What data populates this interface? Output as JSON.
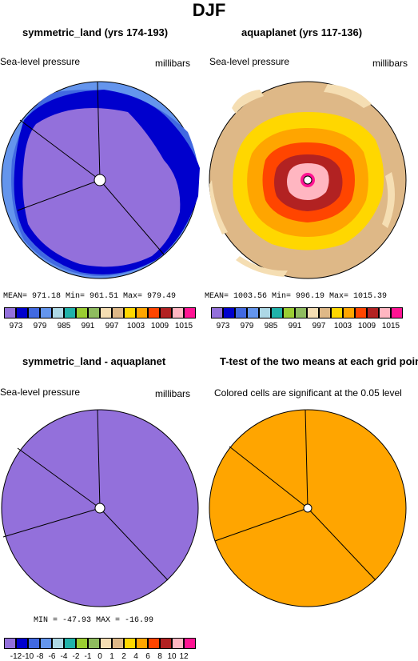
{
  "figure": {
    "title": "DJF",
    "panels": [
      {
        "title": "symmetric_land (yrs 174-193)",
        "left_label": "Sea-level pressure",
        "right_label": "millibars",
        "stats": "MEAN= 971.18   Min= 961.51   Max= 979.49"
      },
      {
        "title": "aquaplanet (yrs 117-136)",
        "left_label": "Sea-level pressure",
        "right_label": "millibars",
        "stats": "MEAN= 1003.56  Min= 996.19  Max= 1015.39"
      },
      {
        "title": "symmetric_land - aquaplanet",
        "left_label": "Sea-level pressure",
        "right_label": "millibars",
        "stats": "MIN = -47.93  MAX = -16.99"
      },
      {
        "title": "T-test of the two means at each grid point",
        "left_label": "Colored cells are significant at the 0.05 level",
        "right_label": "",
        "stats": ""
      }
    ],
    "top_colorbar": {
      "colors": [
        "#9370db",
        "#0000cd",
        "#4169e1",
        "#6495ed",
        "#add8e6",
        "#20b2aa",
        "#9acd32",
        "#8fbc5f",
        "#f5deb3",
        "#deb887",
        "#ffd700",
        "#ffa500",
        "#ff4500",
        "#b22222",
        "#ffb6c1",
        "#ff1493"
      ],
      "labels": [
        "973",
        "979",
        "985",
        "991",
        "997",
        "1003",
        "1009",
        "1015"
      ]
    },
    "diff_colorbar": {
      "colors": [
        "#9370db",
        "#0000cd",
        "#4169e1",
        "#6495ed",
        "#add8e6",
        "#20b2aa",
        "#9acd32",
        "#8fbc5f",
        "#f5deb3",
        "#deb887",
        "#ffd700",
        "#ffa500",
        "#ff4500",
        "#b22222",
        "#ffb6c1",
        "#ff1493"
      ],
      "labels": [
        "-12",
        "-10",
        "-8",
        "-6",
        "-4",
        "-2",
        "-1",
        "0",
        "1",
        "2",
        "4",
        "6",
        "8",
        "10",
        "12"
      ]
    }
  },
  "chart_data": [
    {
      "type": "heatmap",
      "title": "symmetric_land (yrs 174-193)",
      "variable": "Sea-level pressure",
      "units": "millibars",
      "mean": 971.18,
      "min": 961.51,
      "max": 979.49,
      "levels": [
        973,
        976,
        979,
        982,
        985,
        988,
        991,
        994,
        997,
        1000,
        1003,
        1006,
        1009,
        1012,
        1015
      ]
    },
    {
      "type": "heatmap",
      "title": "aquaplanet (yrs 117-136)",
      "variable": "Sea-level pressure",
      "units": "millibars",
      "mean": 1003.56,
      "min": 996.19,
      "max": 1015.39,
      "levels": [
        973,
        976,
        979,
        982,
        985,
        988,
        991,
        994,
        997,
        1000,
        1003,
        1006,
        1009,
        1012,
        1015
      ]
    },
    {
      "type": "heatmap",
      "title": "symmetric_land - aquaplanet",
      "variable": "Sea-level pressure",
      "units": "millibars",
      "min": -47.93,
      "max": -16.99,
      "levels": [
        -12,
        -10,
        -8,
        -6,
        -4,
        -2,
        -1,
        0,
        1,
        2,
        4,
        6,
        8,
        10,
        12
      ]
    },
    {
      "type": "heatmap",
      "title": "T-test of the two means at each grid point",
      "note": "Colored cells are significant at the 0.05 level"
    }
  ]
}
